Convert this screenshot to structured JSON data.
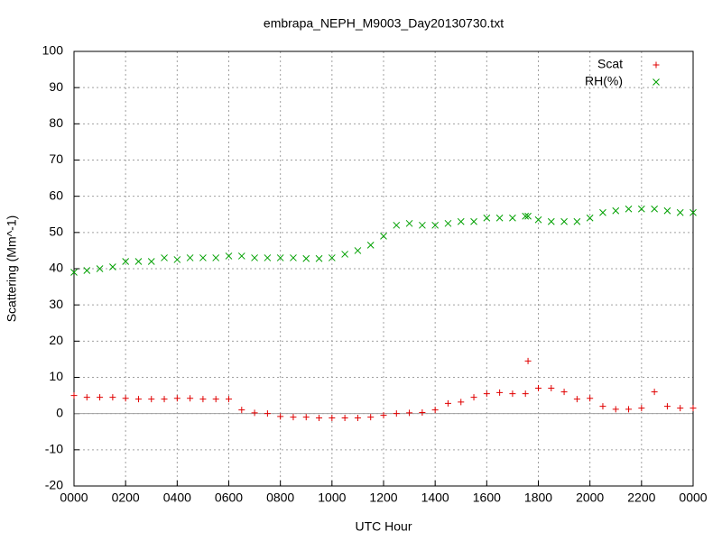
{
  "chart_data": {
    "type": "scatter",
    "title": "embrapa_NEPH_M9003_Day20130730.txt",
    "x_label": "UTC Hour",
    "y_label": "Scattering (Mm^-1)",
    "xlim": [
      0,
      24
    ],
    "xticks": [
      {
        "value": 0,
        "label": "0000"
      },
      {
        "value": 2,
        "label": "0200"
      },
      {
        "value": 4,
        "label": "0400"
      },
      {
        "value": 6,
        "label": "0600"
      },
      {
        "value": 8,
        "label": "0800"
      },
      {
        "value": 10,
        "label": "1000"
      },
      {
        "value": 12,
        "label": "1200"
      },
      {
        "value": 14,
        "label": "1400"
      },
      {
        "value": 16,
        "label": "1600"
      },
      {
        "value": 18,
        "label": "1800"
      },
      {
        "value": 20,
        "label": "2000"
      },
      {
        "value": 22,
        "label": "2200"
      },
      {
        "value": 24,
        "label": "0000"
      }
    ],
    "ylim": [
      -20,
      100
    ],
    "yticks": [
      -20,
      -10,
      0,
      10,
      20,
      30,
      40,
      50,
      60,
      70,
      80,
      90,
      100
    ],
    "grid": true,
    "zeroaxis": true,
    "legend": "top-right",
    "x": [
      0,
      0.5,
      1,
      1.5,
      2,
      2.5,
      3,
      3.5,
      4,
      4.5,
      5,
      5.5,
      6,
      6.5,
      7,
      7.5,
      8,
      8.5,
      9,
      9.5,
      10,
      10.5,
      11,
      11.5,
      12,
      12.5,
      13,
      13.5,
      14,
      14.5,
      15,
      15.5,
      16,
      16.5,
      17,
      17.5,
      17.6,
      18,
      18.5,
      19,
      19.5,
      20,
      20.5,
      21,
      21.5,
      22,
      22.5,
      23,
      23.5,
      24
    ],
    "series": [
      {
        "name": "Scat",
        "color": "#e00000",
        "marker": "plus",
        "values": [
          5,
          4.5,
          4.5,
          4.5,
          4.2,
          4,
          4,
          4,
          4.2,
          4.2,
          4,
          4,
          4,
          1,
          0.2,
          0,
          -0.8,
          -1,
          -1,
          -1.2,
          -1.2,
          -1.2,
          -1.2,
          -1,
          -0.5,
          0,
          0.2,
          0.3,
          1,
          2.8,
          3.2,
          4.5,
          5.5,
          5.8,
          5.5,
          5.5,
          14.5,
          7,
          7,
          6,
          4,
          4.2,
          2,
          1.2,
          1.2,
          1.5,
          6,
          2,
          1.5,
          1.5
        ]
      },
      {
        "name": "RH(%)",
        "color": "#00a000",
        "marker": "cross",
        "values": [
          39,
          39.5,
          40,
          40.5,
          42,
          42,
          42,
          43,
          42.5,
          43,
          43,
          43,
          43.5,
          43.5,
          43,
          43,
          43,
          43,
          42.8,
          42.8,
          43,
          44,
          45,
          46.5,
          49,
          52,
          52.5,
          52,
          52,
          52.5,
          53,
          53,
          54,
          54,
          54,
          54.5,
          54.5,
          53.5,
          53,
          53,
          53,
          54,
          55.5,
          56,
          56.5,
          56.5,
          56.5,
          56,
          55.5,
          55.5
        ]
      }
    ]
  }
}
